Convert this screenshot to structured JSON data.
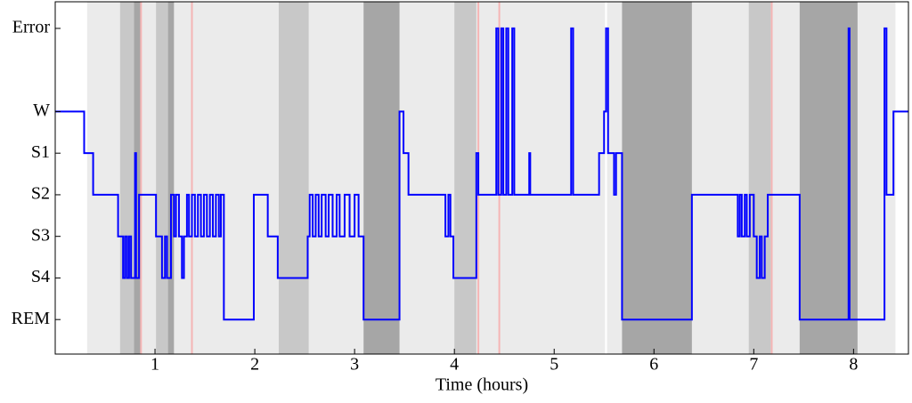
{
  "chart_data": {
    "type": "step",
    "xlabel": "Time (hours)",
    "xlim": [
      0,
      8.55
    ],
    "xticks": [
      1,
      2,
      3,
      4,
      5,
      6,
      7,
      8
    ],
    "ylim": [
      -0.83,
      7.64
    ],
    "yticks": [
      {
        "value": 0,
        "label": "REM"
      },
      {
        "value": 1,
        "label": "S4"
      },
      {
        "value": 2,
        "label": "S3"
      },
      {
        "value": 3,
        "label": "S2"
      },
      {
        "value": 4,
        "label": "S1"
      },
      {
        "value": 5,
        "label": "W"
      },
      {
        "value": 7,
        "label": "Error"
      }
    ],
    "regions": [
      {
        "x0": 0.32,
        "x1": 5.51,
        "color": "#ebebeb"
      },
      {
        "x0": 5.53,
        "x1": 8.42,
        "color": "#ebebeb"
      },
      {
        "x0": 0.65,
        "x1": 0.79,
        "color": "#c8c8c8"
      },
      {
        "x0": 1.01,
        "x1": 1.13,
        "color": "#c8c8c8"
      },
      {
        "x0": 2.24,
        "x1": 2.54,
        "color": "#c8c8c8"
      },
      {
        "x0": 4.0,
        "x1": 4.22,
        "color": "#c8c8c8"
      },
      {
        "x0": 6.95,
        "x1": 7.17,
        "color": "#c8c8c8"
      },
      {
        "x0": 0.79,
        "x1": 0.86,
        "color": "#a6a6a6"
      },
      {
        "x0": 1.13,
        "x1": 1.19,
        "color": "#a6a6a6"
      },
      {
        "x0": 3.09,
        "x1": 3.45,
        "color": "#a6a6a6"
      },
      {
        "x0": 5.68,
        "x1": 6.38,
        "color": "#a6a6a6"
      },
      {
        "x0": 7.46,
        "x1": 8.04,
        "color": "#a6a6a6"
      }
    ],
    "markers": {
      "x": [
        0.86,
        1.37,
        4.24,
        4.45,
        7.18
      ],
      "color": "#f5b5b5"
    },
    "series": [
      {
        "color": "#0000ff",
        "x": [
          0,
          0.29,
          0.38,
          0.63,
          0.68,
          0.7,
          0.72,
          0.74,
          0.76,
          0.8,
          0.81,
          0.84,
          1.01,
          1.07,
          1.1,
          1.12,
          1.16,
          1.19,
          1.21,
          1.24,
          1.27,
          1.29,
          1.32,
          1.34,
          1.37,
          1.4,
          1.43,
          1.46,
          1.49,
          1.52,
          1.55,
          1.58,
          1.61,
          1.64,
          1.66,
          1.69,
          1.99,
          2.13,
          2.23,
          2.53,
          2.55,
          2.58,
          2.61,
          2.64,
          2.67,
          2.71,
          2.74,
          2.78,
          2.82,
          2.85,
          2.9,
          2.95,
          3.0,
          3.04,
          3.09,
          3.45,
          3.49,
          3.54,
          3.91,
          3.94,
          3.96,
          3.99,
          4.22,
          4.24,
          4.42,
          4.44,
          4.47,
          4.49,
          4.52,
          4.54,
          4.58,
          4.6,
          4.75,
          4.76,
          5.17,
          5.19,
          5.45,
          5.5,
          5.52,
          5.54,
          5.6,
          5.62,
          5.68,
          6.38,
          6.84,
          6.86,
          6.88,
          6.91,
          6.93,
          6.96,
          7.0,
          7.03,
          7.06,
          7.08,
          7.11,
          7.14,
          7.46,
          7.95,
          7.96,
          8.31,
          8.33,
          8.4,
          8.55
        ],
        "values": [
          5,
          4,
          3,
          2,
          1,
          2,
          1,
          2,
          1,
          4,
          1,
          3,
          2,
          1,
          2,
          1,
          3,
          2,
          3,
          2,
          1,
          2,
          3,
          2,
          3,
          2,
          3,
          2,
          3,
          2,
          3,
          2,
          3,
          2,
          3,
          0,
          3,
          2,
          1,
          2,
          3,
          2,
          3,
          2,
          3,
          2,
          3,
          2,
          3,
          2,
          3,
          2,
          3,
          2,
          0,
          5,
          4,
          3,
          2,
          3,
          2,
          1,
          4,
          3,
          7,
          3,
          7,
          3,
          7,
          3,
          7,
          3,
          4,
          3,
          7,
          3,
          4,
          5,
          7,
          4,
          3,
          4,
          0,
          3,
          2,
          3,
          2,
          3,
          2,
          3,
          2,
          1,
          2,
          1,
          2,
          3,
          0,
          7,
          0,
          7,
          3,
          5,
          5
        ]
      }
    ]
  }
}
